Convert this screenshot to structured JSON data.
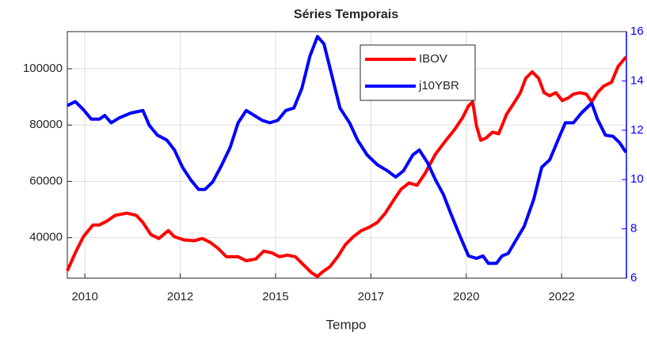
{
  "chart_data": {
    "type": "line",
    "title": "Séries Temporais",
    "xlabel": "Tempo",
    "xlim": [
      2009.54,
      2024.2
    ],
    "xticks": [
      {
        "value": 2010,
        "label": "2010"
      },
      {
        "value": 2012.5,
        "label": "2012"
      },
      {
        "value": 2015,
        "label": "2015"
      },
      {
        "value": 2017.5,
        "label": "2017"
      },
      {
        "value": 2020,
        "label": "2020"
      },
      {
        "value": 2022.5,
        "label": "2022"
      }
    ],
    "ylim": [
      25600,
      113200
    ],
    "yticks": [
      40000,
      60000,
      80000,
      100000
    ],
    "y2lim": [
      6,
      16
    ],
    "y2ticks": [
      6,
      8,
      10,
      12,
      14,
      16
    ],
    "y2color": "#0000ff",
    "grid": true,
    "legend": "upper center",
    "series": [
      {
        "name": "IBOV",
        "color": "#ff0000",
        "x": [
          2009.54,
          2009.75,
          2009.96,
          2010.21,
          2010.38,
          2010.58,
          2010.79,
          2011.1,
          2011.35,
          2011.52,
          2011.73,
          2011.94,
          2012.19,
          2012.35,
          2012.6,
          2012.88,
          2013.08,
          2013.29,
          2013.5,
          2013.71,
          2014.02,
          2014.23,
          2014.48,
          2014.69,
          2014.9,
          2015.1,
          2015.31,
          2015.52,
          2015.73,
          2015.94,
          2016.1,
          2016.21,
          2016.42,
          2016.63,
          2016.83,
          2017.04,
          2017.25,
          2017.46,
          2017.67,
          2017.88,
          2018.08,
          2018.29,
          2018.5,
          2018.71,
          2018.92,
          2019.19,
          2019.44,
          2019.69,
          2019.9,
          2020.06,
          2020.17,
          2020.27,
          2020.38,
          2020.52,
          2020.69,
          2020.85,
          2021.06,
          2021.27,
          2021.42,
          2021.56,
          2021.73,
          2021.9,
          2022.04,
          2022.19,
          2022.35,
          2022.52,
          2022.67,
          2022.81,
          2022.98,
          2023.15,
          2023.29,
          2023.44,
          2023.6,
          2023.81,
          2023.98,
          2024.19
        ],
        "values": [
          28200,
          34600,
          40300,
          44500,
          44500,
          45900,
          47900,
          48700,
          47900,
          45400,
          41100,
          39700,
          42500,
          40300,
          39200,
          38900,
          39700,
          38300,
          36100,
          33200,
          33200,
          31800,
          32400,
          35200,
          34600,
          33200,
          33800,
          33200,
          30400,
          27600,
          26200,
          27600,
          29600,
          33200,
          37500,
          40300,
          42500,
          43700,
          45400,
          48700,
          53000,
          57200,
          59400,
          58600,
          62800,
          69600,
          74100,
          78300,
          82500,
          86800,
          88200,
          79700,
          74600,
          75400,
          77500,
          76900,
          83900,
          88200,
          91500,
          96600,
          98900,
          96600,
          91500,
          90400,
          91500,
          88700,
          89600,
          91000,
          91500,
          91000,
          88200,
          91500,
          93800,
          95200,
          100800,
          104200
        ]
      },
      {
        "name": "j10YBR",
        "color": "#0000ff",
        "axis": "y2",
        "x": [
          2009.54,
          2009.75,
          2009.96,
          2010.17,
          2010.38,
          2010.52,
          2010.69,
          2010.9,
          2011.21,
          2011.52,
          2011.69,
          2011.9,
          2012.15,
          2012.35,
          2012.56,
          2012.77,
          2012.98,
          2013.15,
          2013.35,
          2013.56,
          2013.81,
          2014.02,
          2014.23,
          2014.44,
          2014.65,
          2014.85,
          2015.06,
          2015.27,
          2015.48,
          2015.69,
          2015.9,
          2016.1,
          2016.27,
          2016.48,
          2016.69,
          2016.94,
          2017.15,
          2017.4,
          2017.67,
          2017.94,
          2018.15,
          2018.35,
          2018.6,
          2018.77,
          2018.98,
          2019.19,
          2019.4,
          2019.6,
          2019.81,
          2020.06,
          2020.27,
          2020.44,
          2020.58,
          2020.79,
          2020.94,
          2021.1,
          2021.27,
          2021.52,
          2021.77,
          2021.98,
          2022.19,
          2022.46,
          2022.6,
          2022.81,
          2023.02,
          2023.29,
          2023.44,
          2023.65,
          2023.85,
          2024.02,
          2024.19
        ],
        "values": [
          13.0,
          13.16,
          12.84,
          12.45,
          12.45,
          12.6,
          12.3,
          12.5,
          12.7,
          12.8,
          12.2,
          11.8,
          11.6,
          11.2,
          10.5,
          10.0,
          9.6,
          9.6,
          9.9,
          10.5,
          11.3,
          12.3,
          12.8,
          12.6,
          12.4,
          12.3,
          12.4,
          12.8,
          12.9,
          13.7,
          15.0,
          15.8,
          15.5,
          14.2,
          12.9,
          12.3,
          11.6,
          11.0,
          10.6,
          10.35,
          10.1,
          10.35,
          11.0,
          11.2,
          10.7,
          10.0,
          9.4,
          8.6,
          7.8,
          6.9,
          6.8,
          6.9,
          6.6,
          6.6,
          6.9,
          7.0,
          7.45,
          8.1,
          9.2,
          10.5,
          10.8,
          11.8,
          12.3,
          12.3,
          12.7,
          13.1,
          12.45,
          11.8,
          11.75,
          11.5,
          11.1
        ]
      }
    ]
  }
}
